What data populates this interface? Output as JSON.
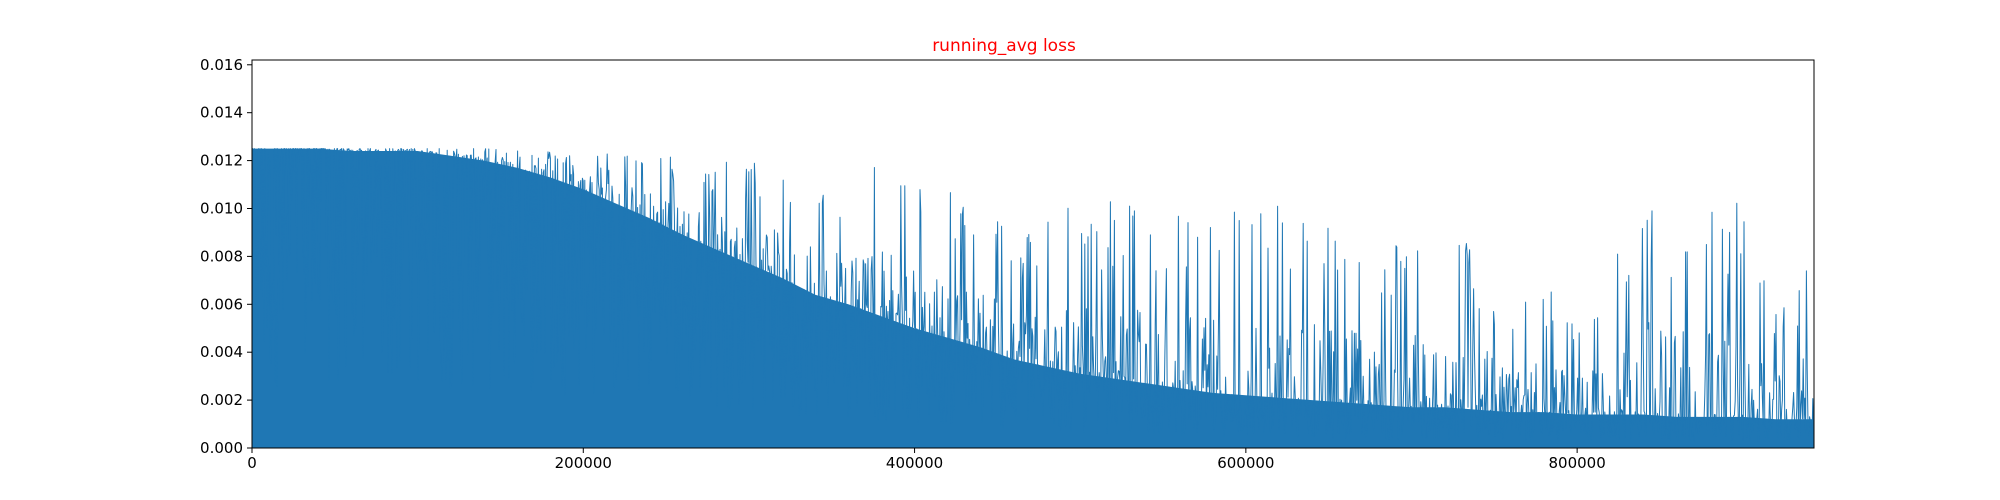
{
  "chart_data": {
    "type": "area",
    "title": "running_avg loss",
    "title_color": "#ff0000",
    "xlabel": "",
    "ylabel": "",
    "xlim": [
      0,
      943000
    ],
    "ylim": [
      0,
      0.0162
    ],
    "x_ticks": [
      0,
      200000,
      400000,
      600000,
      800000
    ],
    "x_tick_labels": [
      "0",
      "200000",
      "400000",
      "600000",
      "800000"
    ],
    "y_ticks": [
      0.0,
      0.002,
      0.004,
      0.006,
      0.008,
      0.01,
      0.012,
      0.014,
      0.016
    ],
    "y_tick_labels": [
      "0.000",
      "0.002",
      "0.004",
      "0.006",
      "0.008",
      "0.010",
      "0.012",
      "0.014",
      "0.016"
    ],
    "grid": false,
    "series": [
      {
        "color": "#1f77b4",
        "x": [
          0,
          20000,
          40000,
          60000,
          80000,
          100000,
          120000,
          140000,
          160000,
          180000,
          200000,
          220000,
          240000,
          260000,
          280000,
          300000,
          320000,
          340000,
          360000,
          380000,
          400000,
          420000,
          440000,
          460000,
          480000,
          500000,
          520000,
          540000,
          560000,
          580000,
          600000,
          620000,
          640000,
          660000,
          680000,
          700000,
          720000,
          740000,
          760000,
          780000,
          800000,
          820000,
          840000,
          860000,
          880000,
          900000,
          920000,
          943000
        ],
        "upper": [
          0.0125,
          0.0125,
          0.0125,
          0.0125,
          0.0125,
          0.0125,
          0.0125,
          0.0125,
          0.0124,
          0.0124,
          0.0123,
          0.0124,
          0.0123,
          0.0122,
          0.0121,
          0.012,
          0.0119,
          0.0117,
          0.012,
          0.0125,
          0.0112,
          0.0106,
          0.0118,
          0.0082,
          0.0105,
          0.0104,
          0.0104,
          0.0106,
          0.0103,
          0.0101,
          0.0104,
          0.0104,
          0.0103,
          0.0096,
          0.0091,
          0.0093,
          0.0087,
          0.0087,
          0.0055,
          0.0071,
          0.0055,
          0.0073,
          0.0112,
          0.0106,
          0.0113,
          0.0101,
          0.0058,
          0.0082
        ],
        "envelope": [
          0.0125,
          0.0125,
          0.0125,
          0.0124,
          0.0124,
          0.0124,
          0.0122,
          0.012,
          0.0117,
          0.0113,
          0.0108,
          0.0102,
          0.0096,
          0.0089,
          0.0083,
          0.0077,
          0.0071,
          0.0064,
          0.006,
          0.0055,
          0.005,
          0.0046,
          0.0042,
          0.0037,
          0.0034,
          0.0031,
          0.0029,
          0.0027,
          0.0025,
          0.0023,
          0.0022,
          0.0021,
          0.002,
          0.0019,
          0.0018,
          0.0017,
          0.0017,
          0.0016,
          0.0015,
          0.0015,
          0.0014,
          0.0014,
          0.0014,
          0.0013,
          0.0013,
          0.0013,
          0.0012,
          0.0012
        ]
      }
    ]
  }
}
